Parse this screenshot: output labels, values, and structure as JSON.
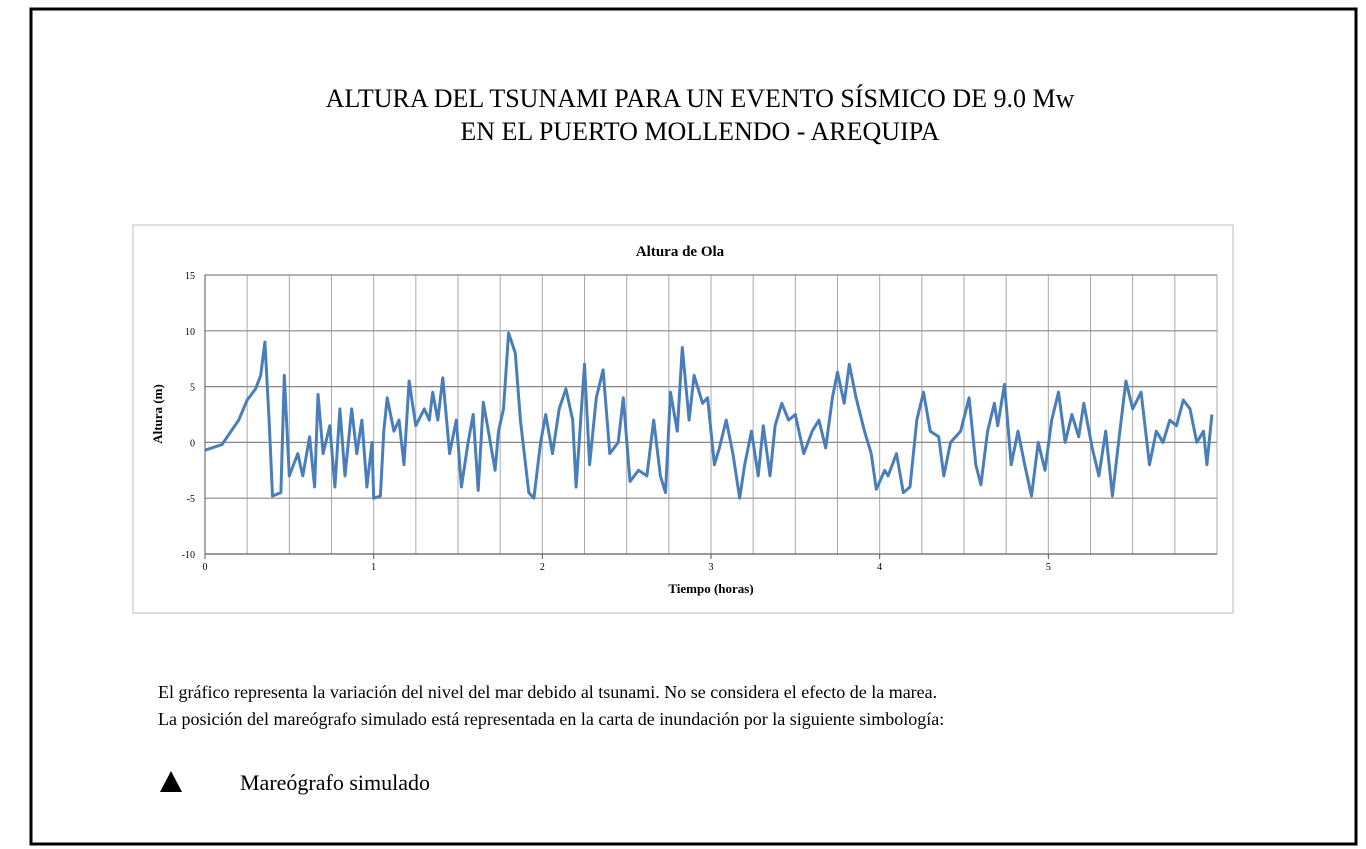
{
  "header": {
    "lines": [
      "ALTURA DEL TSUNAMI PARA UN EVENTO SÍSMICO DE 9.0 Mw",
      "EN EL PUERTO MOLLENDO - AREQUIPA"
    ]
  },
  "chart_data": {
    "type": "line",
    "title": "Altura de Ola",
    "x_label": "Tiempo (horas)",
    "y_label": "Altura (m)",
    "xlim": [
      0,
      6
    ],
    "ylim": [
      -10,
      15
    ],
    "xticks": [
      0,
      1,
      2,
      3,
      4,
      5
    ],
    "yticks": [
      -10,
      -5,
      0,
      5,
      10,
      15
    ],
    "xgrid": [
      0.25,
      0.5,
      0.75,
      1,
      1.25,
      1.5,
      1.75,
      2,
      2.25,
      2.5,
      2.75,
      3,
      3.25,
      3.5,
      3.75,
      4,
      4.25,
      4.5,
      4.75,
      5,
      5.25,
      5.5,
      5.75,
      6
    ],
    "grid": true,
    "x": [
      0,
      0.1,
      0.2,
      0.25,
      0.3,
      0.33,
      0.355,
      0.38,
      0.4,
      0.45,
      0.47,
      0.5,
      0.55,
      0.58,
      0.62,
      0.65,
      0.67,
      0.7,
      0.74,
      0.77,
      0.8,
      0.83,
      0.87,
      0.9,
      0.93,
      0.96,
      0.99,
      1.0,
      1.04,
      1.06,
      1.08,
      1.12,
      1.15,
      1.18,
      1.21,
      1.25,
      1.3,
      1.33,
      1.35,
      1.38,
      1.41,
      1.45,
      1.49,
      1.52,
      1.56,
      1.59,
      1.62,
      1.65,
      1.68,
      1.72,
      1.74,
      1.77,
      1.8,
      1.84,
      1.87,
      1.92,
      1.95,
      1.99,
      2.02,
      2.06,
      2.1,
      2.14,
      2.18,
      2.2,
      2.25,
      2.28,
      2.32,
      2.36,
      2.4,
      2.45,
      2.48,
      2.52,
      2.57,
      2.62,
      2.66,
      2.7,
      2.73,
      2.76,
      2.8,
      2.83,
      2.87,
      2.9,
      2.95,
      2.98,
      3.02,
      3.05,
      3.09,
      3.13,
      3.17,
      3.2,
      3.24,
      3.28,
      3.31,
      3.35,
      3.38,
      3.42,
      3.46,
      3.5,
      3.55,
      3.6,
      3.64,
      3.68,
      3.72,
      3.75,
      3.79,
      3.82,
      3.86,
      3.91,
      3.95,
      3.98,
      4.03,
      4.05,
      4.1,
      4.14,
      4.18,
      4.22,
      4.26,
      4.3,
      4.35,
      4.38,
      4.42,
      4.48,
      4.53,
      4.57,
      4.6,
      4.64,
      4.68,
      4.7,
      4.74,
      4.78,
      4.82,
      4.86,
      4.9,
      4.94,
      4.98,
      5.02,
      5.06,
      5.1,
      5.14,
      5.18,
      5.21,
      5.26,
      5.3,
      5.34,
      5.38,
      5.42,
      5.46,
      5.5,
      5.55,
      5.6,
      5.64,
      5.68,
      5.72,
      5.76,
      5.8,
      5.84,
      5.88,
      5.92,
      5.94,
      5.97
    ],
    "series": [
      {
        "name": "Altura de Ola",
        "color": "#4a7ebb",
        "values": [
          -0.7,
          -0.2,
          2,
          3.8,
          4.8,
          6,
          9,
          2,
          -4.8,
          -4.5,
          6,
          -3,
          -1,
          -3,
          0.5,
          -4,
          4.3,
          -1,
          1.5,
          -4,
          3,
          -3,
          3,
          -1,
          2,
          -4,
          0,
          -5,
          -4.8,
          1,
          4,
          1,
          2,
          -2,
          5.5,
          1.5,
          3,
          2,
          4.5,
          2,
          5.8,
          -1,
          2,
          -4,
          0,
          2.5,
          -4.3,
          3.6,
          1,
          -2.5,
          1,
          3,
          9.8,
          8,
          2,
          -4.5,
          -5,
          0,
          2.5,
          -1,
          3,
          4.8,
          2,
          -4,
          7,
          -2,
          4,
          6.5,
          -1,
          0,
          4,
          -3.5,
          -2.5,
          -3,
          2,
          -3,
          -4.5,
          4.5,
          1,
          8.5,
          2,
          6,
          3.5,
          4,
          -2,
          -0.5,
          2,
          -1,
          -5,
          -2,
          1,
          -3,
          1.5,
          -3,
          1.5,
          3.5,
          2,
          2.5,
          -1,
          1,
          2,
          -0.5,
          4,
          6.3,
          3.5,
          7,
          4,
          1,
          -1,
          -4.2,
          -2.5,
          -3,
          -1,
          -4.5,
          -4,
          2,
          4.5,
          1,
          0.5,
          -3,
          0,
          1,
          4,
          -2,
          -3.8,
          1,
          3.5,
          1.5,
          5.2,
          -2,
          1,
          -2,
          -4.8,
          0,
          -2.5,
          2,
          4.5,
          0,
          2.5,
          0.5,
          3.5,
          -0.5,
          -3,
          1,
          -4.8,
          0.5,
          5.5,
          3,
          4.5,
          -2,
          1,
          0,
          2,
          1.5,
          3.8,
          3,
          0,
          1,
          -2,
          2.5
        ]
      }
    ]
  },
  "notes": [
    "El gráfico representa la variación del nivel del mar debido al tsunami. No se considera el efecto de la marea.",
    "La posición del mareógrafo simulado está representada en la carta de inundación por la siguiente simbología:"
  ],
  "symbol_label": "Mareógrafo simulado"
}
